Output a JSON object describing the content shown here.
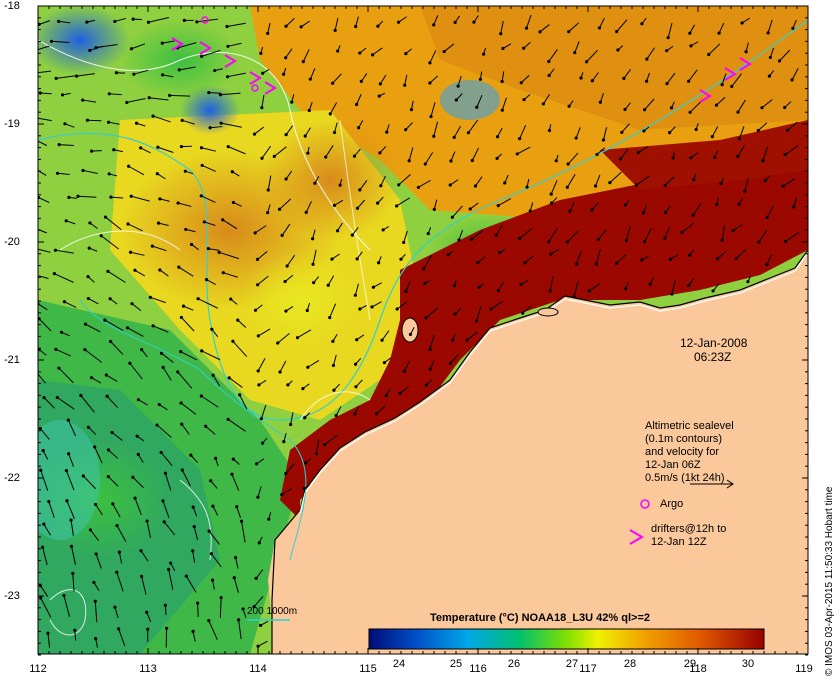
{
  "map": {
    "date": "12-Jan-2008",
    "time": "06:23Z",
    "lon_ticks": [
      "112",
      "113",
      "114",
      "115",
      "116",
      "117",
      "118",
      "119"
    ],
    "lat_ticks": [
      "-18",
      "-19",
      "-20",
      "-21",
      "-22",
      "-23"
    ],
    "extent": {
      "lon": [
        112,
        119
      ],
      "lat": [
        -23.5,
        -18
      ]
    },
    "land_color": "#fac89b"
  },
  "legend": {
    "velocity_lines": [
      "Altimetric sealevel",
      "(0.1m contours)",
      "and velocity for",
      "12-Jan 06Z",
      "0.5m/s (1kt 24h)"
    ],
    "argo_label": "Argo",
    "drifter_lines": [
      "drifters@12h to",
      "12-Jan 12Z"
    ],
    "isobath_label": "200  1000m"
  },
  "colorbar": {
    "title": "Temperature (°C) NOAA18_L3U 42% ql>=2",
    "ticks": [
      "24",
      "25",
      "26",
      "27",
      "28",
      "29",
      "30"
    ],
    "range": [
      23.5,
      30.3
    ],
    "colors": [
      "#000c78",
      "#0060d8",
      "#00b8e8",
      "#00c060",
      "#f0f000",
      "#f09000",
      "#e05000",
      "#980000"
    ]
  },
  "credit": "© IMOS 03-Apr-2015 11:50:33 Hobart time"
}
